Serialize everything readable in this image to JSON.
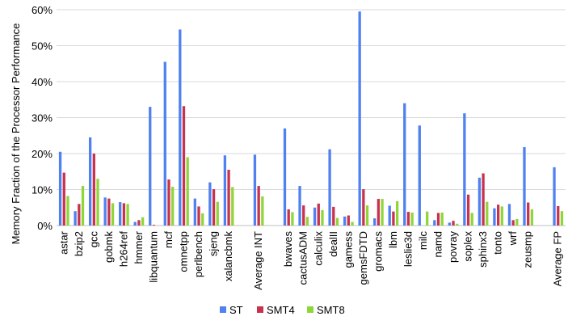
{
  "chart_data": {
    "type": "bar",
    "title": "",
    "xlabel": "",
    "ylabel": "Memory Fraction of the Processor Performance",
    "ylim": [
      0,
      60
    ],
    "yticks": [
      "0%",
      "10%",
      "20%",
      "30%",
      "40%",
      "50%",
      "60%"
    ],
    "ytick_values": [
      0,
      10,
      20,
      30,
      40,
      50,
      60
    ],
    "grid": true,
    "legend_position": "bottom-center",
    "categories": [
      "astar",
      "bzip2",
      "gcc",
      "gobmk",
      "h264ref",
      "hmmer",
      "libquantum",
      "mcf",
      "omnetpp",
      "perlbench",
      "sjeng",
      "xalancbmk",
      "",
      "Average INT",
      "",
      "bwaves",
      "cactusADM",
      "calculix",
      "dealII",
      "gamess",
      "gemsFDTD",
      "gromacs",
      "lbm",
      "leslie3d",
      "milc",
      "namd",
      "povray",
      "soplex",
      "sphinx3",
      "tonto",
      "wrf",
      "zeusmp",
      "",
      "Average FP"
    ],
    "series": [
      {
        "name": "ST",
        "color": "#4f81f0",
        "values": [
          20.5,
          4,
          24.5,
          7.8,
          6.5,
          1,
          33,
          45.5,
          54.5,
          7.5,
          12,
          19.5,
          null,
          19.7,
          null,
          27,
          11,
          5,
          21.2,
          2.5,
          59.5,
          2,
          5.5,
          34,
          27.8,
          1.5,
          0.8,
          31.2,
          13.3,
          4.8,
          6,
          21.8,
          null,
          16.2
        ]
      },
      {
        "name": "SMT4",
        "color": "#c8324e",
        "values": [
          14.7,
          6,
          20,
          7.5,
          6.2,
          1.5,
          0.2,
          12.8,
          33.2,
          5.3,
          10.1,
          15.5,
          null,
          11,
          null,
          4.5,
          5.6,
          6.1,
          5.2,
          2.8,
          10.1,
          7.4,
          3.9,
          3.8,
          0,
          3.5,
          1.3,
          8.6,
          14.5,
          5.8,
          1.5,
          6.4,
          null,
          5.4
        ]
      },
      {
        "name": "SMT8",
        "color": "#8fd63a",
        "values": [
          8.2,
          11,
          13,
          6.2,
          6,
          2.3,
          0,
          10.8,
          19,
          3.4,
          6.6,
          10.7,
          null,
          8.1,
          null,
          3.7,
          2.4,
          4.3,
          2.1,
          1,
          5.6,
          7.4,
          6.8,
          3.6,
          3.9,
          3.6,
          0.5,
          3.5,
          6.6,
          5.3,
          1.8,
          4.5,
          null,
          4
        ]
      }
    ]
  }
}
